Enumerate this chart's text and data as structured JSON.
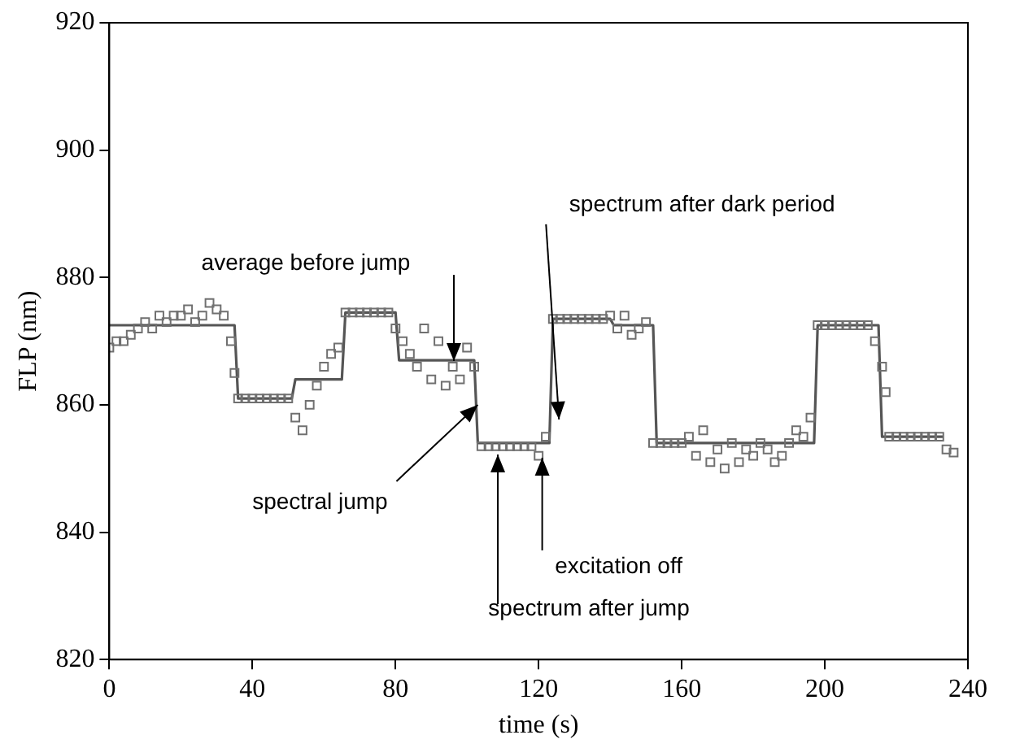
{
  "chart_data": {
    "type": "scatter",
    "xlabel": "time (s)",
    "ylabel": "FLP (nm)",
    "xlim": [
      0,
      240
    ],
    "xticks": [
      0,
      40,
      80,
      120,
      160,
      200,
      240
    ],
    "ylim": [
      820,
      920
    ],
    "yticks": [
      820,
      840,
      860,
      880,
      900,
      920
    ],
    "grid": false,
    "legend": false,
    "series": [
      {
        "type": "scatter",
        "marker": "square",
        "color": "#707070",
        "x": [
          0,
          2,
          4,
          6,
          8,
          10,
          12,
          14,
          16,
          18,
          20,
          22,
          24,
          26,
          28,
          30,
          32,
          34,
          35,
          36,
          38,
          40,
          42,
          44,
          46,
          48,
          50,
          52,
          54,
          56,
          58,
          60,
          62,
          64,
          66,
          68,
          70,
          72,
          74,
          76,
          78,
          80,
          82,
          84,
          86,
          88,
          90,
          92,
          94,
          96,
          98,
          100,
          102,
          104,
          106,
          108,
          110,
          112,
          114,
          116,
          118,
          120,
          122,
          124,
          126,
          128,
          130,
          132,
          134,
          136,
          138,
          140,
          142,
          144,
          146,
          148,
          150,
          152,
          154,
          156,
          158,
          160,
          162,
          164,
          166,
          168,
          170,
          172,
          174,
          176,
          178,
          180,
          182,
          184,
          186,
          188,
          190,
          192,
          194,
          196,
          198,
          200,
          202,
          204,
          206,
          208,
          210,
          212,
          214,
          216,
          217,
          218,
          220,
          222,
          224,
          226,
          228,
          230,
          232,
          234,
          236
        ],
        "values": [
          869,
          870,
          870,
          871,
          872,
          873,
          872,
          874,
          873,
          874,
          874,
          875,
          873,
          874,
          876,
          875,
          874,
          870,
          865,
          861,
          861,
          861,
          861,
          861,
          861,
          861,
          861,
          858,
          856,
          860,
          863,
          866,
          868,
          869,
          874.5,
          874.5,
          874.5,
          874.5,
          874.5,
          874.5,
          874.5,
          872,
          870,
          868,
          866,
          872,
          864,
          870,
          863,
          866,
          864,
          869,
          866,
          853.5,
          853.5,
          853.5,
          853.5,
          853.5,
          853.5,
          853.5,
          853.5,
          852,
          855,
          873.5,
          873.5,
          873.5,
          873.5,
          873.5,
          873.5,
          873.5,
          873.5,
          874,
          872,
          874,
          871,
          872,
          873,
          854,
          854,
          854,
          854,
          854,
          855,
          852,
          856,
          851,
          853,
          850,
          854,
          851,
          853,
          852,
          854,
          853,
          851,
          852,
          854,
          856,
          855,
          858,
          872.5,
          872.5,
          872.5,
          872.5,
          872.5,
          872.5,
          872.5,
          872.5,
          870,
          866,
          862,
          855,
          855,
          855,
          855,
          855,
          855,
          855,
          855,
          853,
          852.5
        ]
      },
      {
        "type": "line",
        "marker": "none",
        "color": "#555555",
        "x": [
          0,
          35,
          36,
          51,
          52,
          65,
          66,
          80,
          81,
          102,
          103,
          123,
          124,
          140,
          141,
          152,
          153,
          197,
          198,
          215,
          216,
          233
        ],
        "values": [
          872.5,
          872.5,
          861,
          861,
          864,
          864,
          874.5,
          874.5,
          867,
          867,
          854,
          854,
          873.5,
          873.5,
          872.5,
          872.5,
          854,
          854,
          872.5,
          872.5,
          855,
          855
        ]
      }
    ],
    "annotations": [
      "average before jump",
      {
        "text": "spectral jump",
        "x": 103,
        "y": 860
      },
      {
        "text": "spectrum after jump",
        "x": 108.6,
        "y": 852.2
      },
      {
        "text": "excitation off",
        "x": 121,
        "y": 851.7
      },
      {
        "text": "spectrum after dark period",
        "x": 125.7,
        "y": 857.7
      }
    ]
  }
}
